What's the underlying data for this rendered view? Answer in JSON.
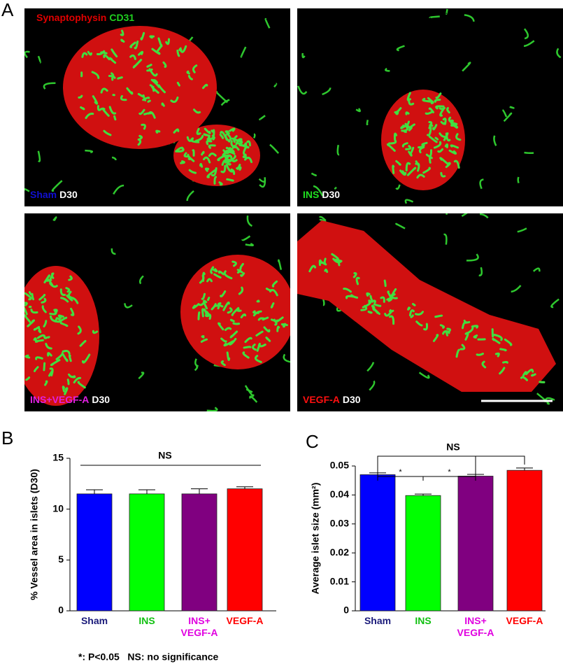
{
  "panel_labels": [
    "A",
    "B",
    "C"
  ],
  "stain_labels": [
    {
      "text": "Synaptophysin",
      "color": "#e00000"
    },
    {
      "text": "CD31",
      "color": "#20d020"
    }
  ],
  "images": [
    {
      "caption": [
        {
          "text": "Sham",
          "color": "#1010d0"
        },
        {
          "text": "D30",
          "color": "#ffffff"
        }
      ]
    },
    {
      "caption": [
        {
          "text": "INS",
          "color": "#20e020"
        },
        {
          "text": "D30",
          "color": "#ffffff"
        }
      ]
    },
    {
      "caption": [
        {
          "text": "INS+VEGF-A",
          "color": "#e020e0"
        },
        {
          "text": "D30",
          "color": "#ffffff"
        }
      ]
    },
    {
      "caption": [
        {
          "text": "VEGF-A",
          "color": "#ff1010"
        },
        {
          "text": "D30",
          "color": "#ffffff"
        }
      ]
    }
  ],
  "chart_data": [
    {
      "type": "bar",
      "y_label": "% Vessel area in islets (D30)",
      "categories": [
        "Sham",
        "INS",
        "INS+ VEGF-A",
        "VEGF-A"
      ],
      "category_colors": [
        "#1a1a7a",
        "#10c010",
        "#e000e0",
        "#ff0000"
      ],
      "colors": [
        "#0000ff",
        "#00ff00",
        "#800080",
        "#ff0000"
      ],
      "values": [
        11.5,
        11.5,
        11.5,
        12.0
      ],
      "errors": [
        0.4,
        0.4,
        0.5,
        0.2
      ],
      "ylim": [
        0,
        15
      ],
      "yticks": [
        0,
        5,
        10,
        15
      ],
      "annotations": [
        "NS"
      ]
    },
    {
      "type": "bar",
      "y_label": "Average islet size (mm²)",
      "categories": [
        "Sham",
        "INS",
        "INS+ VEGF-A",
        "VEGF-A"
      ],
      "category_colors": [
        "#1a1a7a",
        "#10c010",
        "#e000e0",
        "#ff0000"
      ],
      "colors": [
        "#0000ff",
        "#00ff00",
        "#800080",
        "#ff0000"
      ],
      "values": [
        0.047,
        0.0398,
        0.0465,
        0.0485
      ],
      "errors": [
        0.0006,
        0.0005,
        0.0006,
        0.0008
      ],
      "ylim": [
        0,
        0.05
      ],
      "yticks": [
        0,
        0.01,
        0.02,
        0.03,
        0.04,
        0.05
      ],
      "annotations": [
        "*",
        "*",
        "NS"
      ]
    }
  ],
  "footnote": "*: P<0.05   NS: no significance"
}
